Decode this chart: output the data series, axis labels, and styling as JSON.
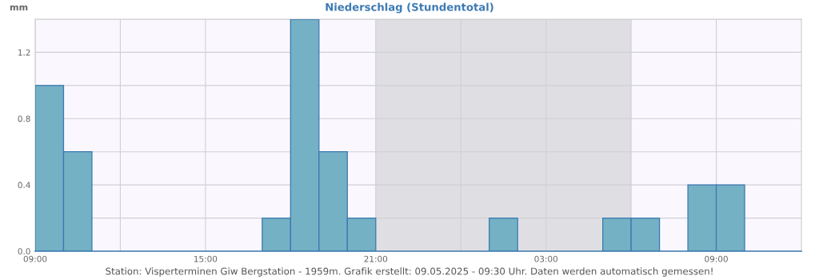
{
  "chart_data": {
    "type": "histogram",
    "title": "Niederschlag (Stundentotal)",
    "ylabel": "mm",
    "bins": [
      "2025-05-08T09:00",
      "2025-05-08T10:00",
      "2025-05-08T11:00",
      "2025-05-08T12:00",
      "2025-05-08T13:00",
      "2025-05-08T14:00",
      "2025-05-08T15:00",
      "2025-05-08T16:00",
      "2025-05-08T17:00",
      "2025-05-08T18:00",
      "2025-05-08T19:00",
      "2025-05-08T20:00",
      "2025-05-08T21:00",
      "2025-05-08T22:00",
      "2025-05-08T23:00",
      "2025-05-09T00:00",
      "2025-05-09T01:00",
      "2025-05-09T02:00",
      "2025-05-09T03:00",
      "2025-05-09T04:00",
      "2025-05-09T05:00",
      "2025-05-09T06:00",
      "2025-05-09T07:00",
      "2025-05-09T08:00",
      "2025-05-09T09:00",
      "2025-05-09T10:00",
      "2025-05-09T11:00",
      "2025-05-09T12:00"
    ],
    "values": [
      1.0,
      0.6,
      0,
      0,
      0,
      0,
      0,
      0,
      0.2,
      1.4,
      0.6,
      0.2,
      0,
      0,
      0,
      0,
      0.2,
      0,
      0,
      0,
      0.2,
      0.2,
      0,
      0.4,
      0.4,
      0,
      0
    ],
    "color": "#74b1c5",
    "xlim": [
      "2025-05-08T09:00",
      "2025-05-09T12:00"
    ],
    "xticks": [
      {
        "value": "2025-05-08T09:00",
        "label": "09:00"
      },
      {
        "value": "2025-05-08T12:00",
        "label": null
      },
      {
        "value": "2025-05-08T15:00",
        "label": "15:00"
      },
      {
        "value": "2025-05-08T18:00",
        "label": null
      },
      {
        "value": "2025-05-08T21:00",
        "label": "21:00"
      },
      {
        "value": "2025-05-09T00:00",
        "label": null
      },
      {
        "value": "2025-05-09T03:00",
        "label": "03:00"
      },
      {
        "value": "2025-05-09T06:00",
        "label": null
      },
      {
        "value": "2025-05-09T09:00",
        "label": "09:00"
      }
    ],
    "ylim": [
      0,
      1.4
    ],
    "yticks": [
      {
        "value": 0,
        "label": "0.0"
      },
      {
        "value": 0.2,
        "label": null
      },
      0.4,
      {
        "value": 0.6,
        "label": null
      },
      0.8,
      {
        "value": 1.0,
        "label": null
      },
      1.2,
      {
        "value": 1.4,
        "label": null
      }
    ],
    "grid": true,
    "bands": [
      {
        "axis": "x",
        "from": "2025-05-08T21:00",
        "to": "2025-05-09T06:00",
        "color": "#dfdfe3"
      }
    ],
    "annotations": [
      "Station: Visperterminen Giw Bergstation - 1959m. Grafik erstellt: 09.05.2025 - 09:30 Uhr. Daten werden automatisch gemessen!"
    ]
  }
}
